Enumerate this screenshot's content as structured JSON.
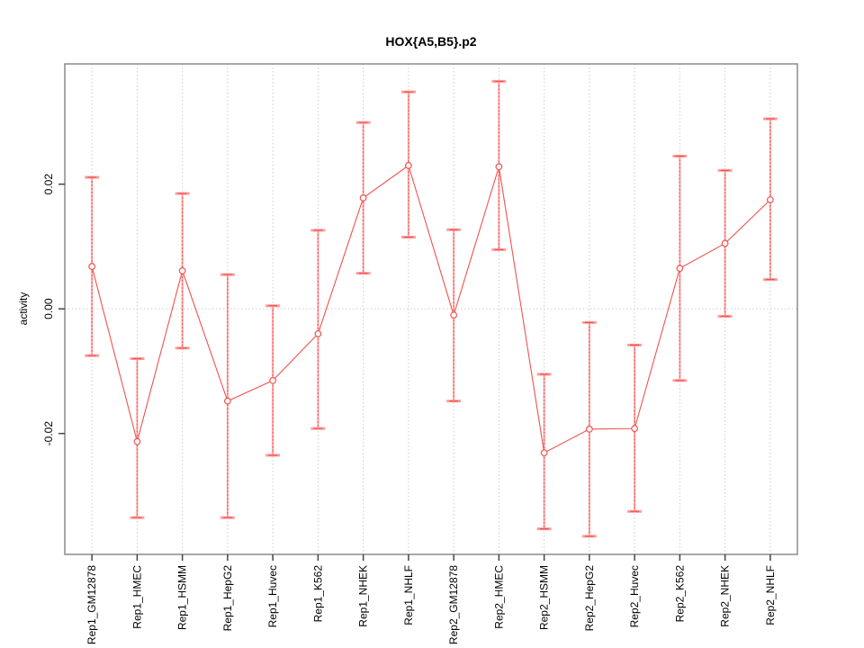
{
  "chart_data": {
    "type": "line",
    "title": "HOX{A5,B5}.p2",
    "ylabel": "activity",
    "xlabel": "",
    "categories": [
      "Rep1_GM12878",
      "Rep1_HMEC",
      "Rep1_HSMM",
      "Rep1_HepG2",
      "Rep1_Huvec",
      "Rep1_K562",
      "Rep1_NHEK",
      "Rep1_NHLF",
      "Rep2_GM12878",
      "Rep2_HMEC",
      "Rep2_HSMM",
      "Rep2_HepG2",
      "Rep2_Huvec",
      "Rep2_K562",
      "Rep2_NHEK",
      "Rep2_NHLF"
    ],
    "series": [
      {
        "name": "activity",
        "values": [
          0.0068,
          -0.0213,
          0.0061,
          -0.0148,
          -0.0115,
          -0.004,
          0.0178,
          0.023,
          -0.001,
          0.0228,
          -0.0231,
          -0.0193,
          -0.0192,
          0.0065,
          0.0105,
          0.0175
        ],
        "error_low": [
          -0.0075,
          -0.0335,
          -0.0063,
          -0.0335,
          -0.0235,
          -0.0192,
          0.0057,
          0.0115,
          -0.0148,
          0.0095,
          -0.0353,
          -0.0365,
          -0.0325,
          -0.0115,
          -0.0012,
          0.0047
        ],
        "error_high": [
          0.0211,
          -0.008,
          0.0185,
          0.0055,
          0.0005,
          0.0126,
          0.0299,
          0.0348,
          0.0127,
          0.0365,
          -0.0105,
          -0.0022,
          -0.0058,
          0.0245,
          0.0222,
          0.0305
        ]
      }
    ],
    "yticks": [
      0.02,
      0,
      -0.02
    ],
    "ytick_labels": [
      "0.02",
      "0.00",
      "-0.02"
    ],
    "ylim": [
      -0.0394,
      0.0393
    ],
    "legend": "none",
    "grid": {
      "vertical": "per-category-dotted",
      "horizontal": "zero-line-dotted"
    },
    "colors": {
      "line": "#ef5350",
      "error_stem": "#ffa5a5",
      "error_cap": "#ff9d9d",
      "point_fill": "#ffffff",
      "grid": "#cdcdcd",
      "box": "#8a8a8a",
      "tick": "#444444"
    }
  }
}
